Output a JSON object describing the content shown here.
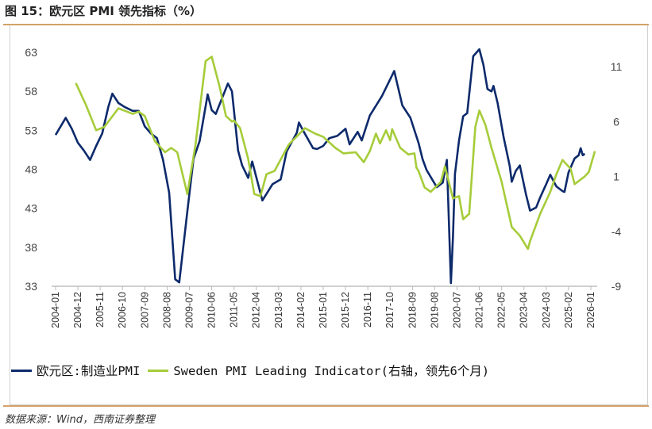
{
  "title": "图 15：欧元区 PMI 领先指标（%）",
  "source": "数据来源：Wind，西南证券整理",
  "colors": {
    "euro": "#0d2a6b",
    "sweden": "#a6cc3a",
    "accent": "#d3a26a"
  },
  "chart_data": {
    "type": "line",
    "title": "",
    "xlabel": "",
    "ylabel": "",
    "x_ticks": [
      "2004-01",
      "2004-12",
      "2005-11",
      "2006-10",
      "2007-09",
      "2008-08",
      "2009-07",
      "2010-06",
      "2011-05",
      "2012-04",
      "2013-03",
      "2014-02",
      "2015-01",
      "2015-12",
      "2016-11",
      "2017-10",
      "2018-09",
      "2019-08",
      "2020-07",
      "2021-06",
      "2022-05",
      "2023-04",
      "2024-03",
      "2025-02",
      "2026-01"
    ],
    "xlim": [
      "2004-01",
      "2026-03"
    ],
    "y_left": {
      "ticks": [
        63,
        58,
        53,
        48,
        43,
        38,
        33
      ],
      "ylim": [
        33,
        63
      ]
    },
    "y_right": {
      "ticks": [
        11,
        6,
        1,
        -4,
        -9
      ],
      "ylim": [
        -9,
        11
      ]
    },
    "grid": false,
    "legend_position": "bottom",
    "series": [
      {
        "name": "欧元区:制造业PMI",
        "axis": "left",
        "points": [
          [
            "2004-01",
            52.4
          ],
          [
            "2004-06",
            54.6
          ],
          [
            "2004-09",
            53.2
          ],
          [
            "2004-12",
            51.4
          ],
          [
            "2005-03",
            50.4
          ],
          [
            "2005-06",
            49.2
          ],
          [
            "2005-09",
            51.0
          ],
          [
            "2005-12",
            52.6
          ],
          [
            "2006-03",
            56.0
          ],
          [
            "2006-05",
            57.7
          ],
          [
            "2006-08",
            56.5
          ],
          [
            "2006-11",
            56.0
          ],
          [
            "2007-03",
            55.5
          ],
          [
            "2007-06",
            55.5
          ],
          [
            "2007-09",
            53.5
          ],
          [
            "2007-12",
            52.6
          ],
          [
            "2008-03",
            52.0
          ],
          [
            "2008-06",
            49.2
          ],
          [
            "2008-09",
            45.0
          ],
          [
            "2008-12",
            33.9
          ],
          [
            "2009-02",
            33.5
          ],
          [
            "2009-06",
            42.6
          ],
          [
            "2009-09",
            49.3
          ],
          [
            "2009-12",
            51.6
          ],
          [
            "2010-04",
            57.6
          ],
          [
            "2010-06",
            55.6
          ],
          [
            "2010-08",
            55.1
          ],
          [
            "2011-02",
            59.0
          ],
          [
            "2011-04",
            58.0
          ],
          [
            "2011-07",
            50.4
          ],
          [
            "2011-09",
            48.5
          ],
          [
            "2011-12",
            46.9
          ],
          [
            "2012-02",
            49.0
          ],
          [
            "2012-07",
            44.0
          ],
          [
            "2012-12",
            46.1
          ],
          [
            "2013-04",
            46.7
          ],
          [
            "2013-07",
            50.3
          ],
          [
            "2013-12",
            52.7
          ],
          [
            "2014-01",
            54.0
          ],
          [
            "2014-03",
            53.0
          ],
          [
            "2014-08",
            50.7
          ],
          [
            "2014-10",
            50.6
          ],
          [
            "2015-01",
            51.0
          ],
          [
            "2015-04",
            52.0
          ],
          [
            "2015-08",
            52.3
          ],
          [
            "2015-12",
            53.2
          ],
          [
            "2016-02",
            51.2
          ],
          [
            "2016-06",
            52.8
          ],
          [
            "2016-08",
            51.7
          ],
          [
            "2016-12",
            54.9
          ],
          [
            "2017-06",
            57.4
          ],
          [
            "2017-12",
            60.6
          ],
          [
            "2018-04",
            56.2
          ],
          [
            "2018-08",
            54.6
          ],
          [
            "2018-12",
            51.4
          ],
          [
            "2019-02",
            49.3
          ],
          [
            "2019-04",
            47.9
          ],
          [
            "2019-09",
            45.7
          ],
          [
            "2019-12",
            46.3
          ],
          [
            "2020-01",
            47.9
          ],
          [
            "2020-02",
            49.2
          ],
          [
            "2020-04",
            33.4
          ],
          [
            "2020-05",
            39.4
          ],
          [
            "2020-06",
            47.4
          ],
          [
            "2020-08",
            51.7
          ],
          [
            "2020-10",
            54.8
          ],
          [
            "2020-12",
            55.2
          ],
          [
            "2021-03",
            62.5
          ],
          [
            "2021-06",
            63.4
          ],
          [
            "2021-08",
            61.4
          ],
          [
            "2021-10",
            58.3
          ],
          [
            "2021-12",
            58.0
          ],
          [
            "2022-01",
            58.7
          ],
          [
            "2022-03",
            56.5
          ],
          [
            "2022-06",
            52.1
          ],
          [
            "2022-09",
            48.4
          ],
          [
            "2022-10",
            46.4
          ],
          [
            "2022-12",
            47.8
          ],
          [
            "2023-02",
            48.5
          ],
          [
            "2023-05",
            44.8
          ],
          [
            "2023-07",
            42.7
          ],
          [
            "2023-10",
            43.1
          ],
          [
            "2023-12",
            44.4
          ],
          [
            "2024-03",
            46.1
          ],
          [
            "2024-05",
            47.3
          ],
          [
            "2024-08",
            45.8
          ],
          [
            "2024-11",
            45.2
          ],
          [
            "2024-12",
            45.1
          ],
          [
            "2025-02",
            47.6
          ],
          [
            "2025-05",
            49.4
          ],
          [
            "2025-07",
            49.8
          ],
          [
            "2025-08",
            50.7
          ],
          [
            "2025-09",
            49.8
          ],
          [
            "2025-10",
            50.0
          ]
        ]
      },
      {
        "name": "Sweden PMI Leading Indicator(右轴，领先6个月)",
        "axis": "right",
        "points": [
          [
            "2004-11",
            9.5
          ],
          [
            "2005-04",
            7.5
          ],
          [
            "2005-09",
            5.2
          ],
          [
            "2006-01",
            5.5
          ],
          [
            "2006-08",
            7.2
          ],
          [
            "2007-03",
            6.7
          ],
          [
            "2007-06",
            6.9
          ],
          [
            "2007-09",
            6.5
          ],
          [
            "2008-02",
            4.2
          ],
          [
            "2008-07",
            3.2
          ],
          [
            "2008-10",
            3.6
          ],
          [
            "2009-01",
            3.2
          ],
          [
            "2009-06",
            -0.6
          ],
          [
            "2009-10",
            3.9
          ],
          [
            "2010-03",
            11.5
          ],
          [
            "2010-06",
            11.9
          ],
          [
            "2010-10",
            9.1
          ],
          [
            "2011-01",
            6.5
          ],
          [
            "2011-04",
            6.0
          ],
          [
            "2011-05",
            6.1
          ],
          [
            "2011-08",
            5.4
          ],
          [
            "2011-12",
            2.6
          ],
          [
            "2012-03",
            -0.6
          ],
          [
            "2012-06",
            -0.8
          ],
          [
            "2012-09",
            1.2
          ],
          [
            "2013-01",
            1.5
          ],
          [
            "2013-08",
            3.9
          ],
          [
            "2014-04",
            5.4
          ],
          [
            "2014-09",
            4.9
          ],
          [
            "2015-01",
            4.6
          ],
          [
            "2015-07",
            3.6
          ],
          [
            "2015-11",
            3.1
          ],
          [
            "2016-05",
            3.2
          ],
          [
            "2016-09",
            2.3
          ],
          [
            "2016-12",
            3.3
          ],
          [
            "2017-03",
            4.9
          ],
          [
            "2017-05",
            4.0
          ],
          [
            "2017-08",
            5.2
          ],
          [
            "2017-10",
            4.3
          ],
          [
            "2017-11",
            5.3
          ],
          [
            "2018-03",
            3.6
          ],
          [
            "2018-07",
            3.0
          ],
          [
            "2018-10",
            3.1
          ],
          [
            "2018-11",
            1.8
          ],
          [
            "2018-12",
            1.5
          ],
          [
            "2019-03",
            0.0
          ],
          [
            "2019-06",
            -0.4
          ],
          [
            "2019-11",
            0.5
          ],
          [
            "2020-01",
            1.9
          ],
          [
            "2020-05",
            -1.0
          ],
          [
            "2020-08",
            -0.8
          ],
          [
            "2020-10",
            -2.9
          ],
          [
            "2021-01",
            -2.4
          ],
          [
            "2021-04",
            5.5
          ],
          [
            "2021-06",
            7.0
          ],
          [
            "2021-09",
            5.7
          ],
          [
            "2021-12",
            3.6
          ],
          [
            "2022-05",
            0.5
          ],
          [
            "2022-10",
            -3.6
          ],
          [
            "2023-02",
            -4.4
          ],
          [
            "2023-06",
            -5.6
          ],
          [
            "2023-07",
            -4.9
          ],
          [
            "2023-12",
            -2.4
          ],
          [
            "2024-05",
            -0.4
          ],
          [
            "2024-08",
            1.2
          ],
          [
            "2024-11",
            2.5
          ],
          [
            "2025-03",
            1.7
          ],
          [
            "2025-05",
            0.3
          ],
          [
            "2025-10",
            1.0
          ],
          [
            "2025-12",
            1.4
          ],
          [
            "2026-03",
            3.3
          ]
        ]
      }
    ]
  }
}
